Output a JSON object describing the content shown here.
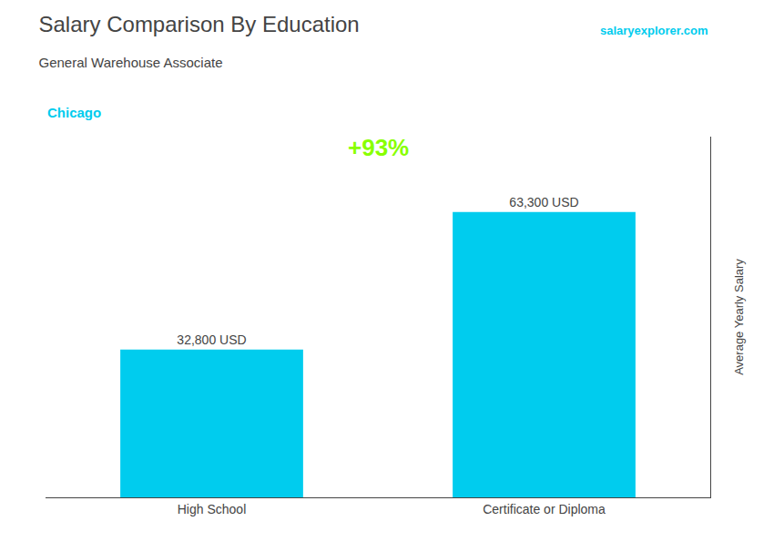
{
  "chart_data": {
    "type": "bar",
    "title": "Salary Comparison By Education",
    "subtitle": "General Warehouse Associate",
    "annotations": [
      {
        "text": "Chicago",
        "color": "#00CCEE"
      },
      {
        "text": "salaryexplorer.com",
        "color": "#00CCEE"
      },
      {
        "text": "+93%",
        "color": "#88FF00"
      }
    ],
    "ylabel": "Average Yearly Salary",
    "categories": [
      "High School",
      "Certificate or Diploma"
    ],
    "values": [
      32800,
      63300
    ],
    "value_labels": [
      "32,800 USD",
      "63,300 USD"
    ],
    "data_labels": true,
    "color": "#00CCEE",
    "ylim": [
      0,
      80000
    ],
    "tick_labels": "x",
    "grid": false
  }
}
